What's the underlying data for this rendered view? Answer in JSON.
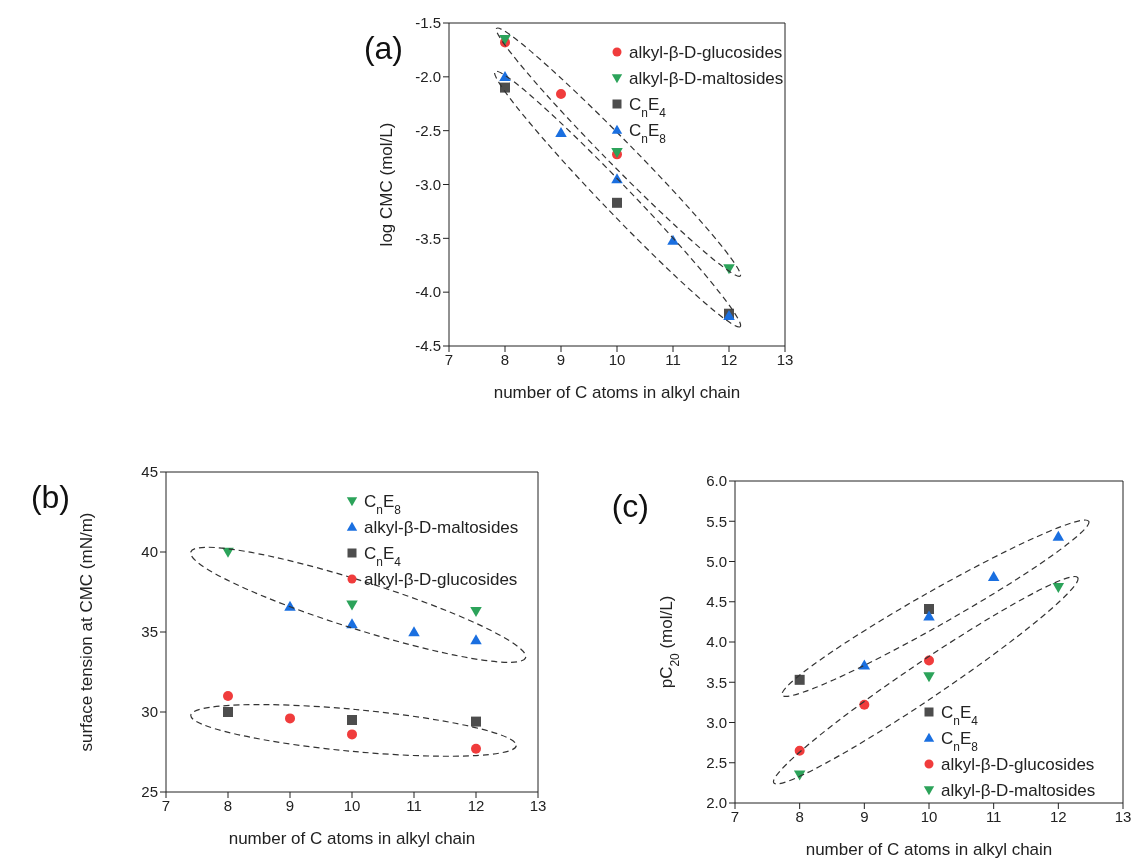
{
  "chart_data": [
    {
      "type": "scatter",
      "title": "(a)",
      "xlabel": "number of C atoms in alkyl chain",
      "ylabel": "log CMC (mol/L)",
      "xlim": [
        7,
        13
      ],
      "xticks": [
        7,
        8,
        9,
        10,
        11,
        12,
        13
      ],
      "ylim": [
        -4.5,
        -1.5
      ],
      "yticks": [
        {
          "value": -4.5,
          "label": "-4.5"
        },
        {
          "value": -4,
          "label": "-4.0"
        },
        {
          "value": -3.5,
          "label": "-3.5"
        },
        {
          "value": -3,
          "label": "-3.0"
        },
        {
          "value": -2.5,
          "label": "-2.5"
        },
        {
          "value": -2,
          "label": "-2.0"
        },
        {
          "value": -1.5,
          "label": "-1.5"
        }
      ],
      "grid": false,
      "legend": "top right",
      "series": [
        {
          "name": "alkyl-β-D-glucosides",
          "color": "#f03c3c",
          "marker": "circle",
          "x": [
            8,
            9,
            10
          ],
          "values": [
            -1.68,
            -2.16,
            -2.72
          ]
        },
        {
          "name": "alkyl-β-D-maltosides",
          "color": "#2ca35a",
          "marker": "triangle-down",
          "x": [
            8,
            10,
            12
          ],
          "values": [
            -1.65,
            -2.7,
            -3.78
          ]
        },
        {
          "name": "C$_{n}$E$_{4}$",
          "color": "#4d4d4d",
          "marker": "square",
          "x": [
            8,
            10,
            12
          ],
          "values": [
            -2.1,
            -3.17,
            -4.2
          ]
        },
        {
          "name": "C$_{n}$E$_{8}$",
          "color": "#1a6fe0",
          "marker": "triangle",
          "x": [
            8,
            9,
            10,
            11,
            12
          ],
          "values": [
            -2.0,
            -2.52,
            -2.95,
            -3.52,
            -4.22
          ]
        }
      ]
    },
    {
      "type": "scatter",
      "title": "(b)",
      "xlabel": "number of C atoms in alkyl chain",
      "ylabel": "surface tension at CMC (mN/m)",
      "xlim": [
        7,
        13
      ],
      "xticks": [
        7,
        8,
        9,
        10,
        11,
        12,
        13
      ],
      "ylim": [
        25,
        45
      ],
      "yticks": [
        25,
        30,
        35,
        40,
        45
      ],
      "grid": false,
      "legend": "top right",
      "series": [
        {
          "name": "C$_{n}$E$_{8}$",
          "color": "#2ca35a",
          "marker": "triangle-down",
          "x": [
            8,
            10,
            12
          ],
          "values": [
            40.0,
            36.7,
            36.3
          ]
        },
        {
          "name": "alkyl-β-D-maltosides",
          "color": "#1a6fe0",
          "marker": "triangle",
          "x": [
            9,
            10,
            11,
            12
          ],
          "values": [
            36.6,
            35.5,
            35.0,
            34.5
          ]
        },
        {
          "name": "C$_{n}$E$_{4}$",
          "color": "#4d4d4d",
          "marker": "square",
          "x": [
            8,
            10,
            12
          ],
          "values": [
            30.0,
            29.5,
            29.4
          ]
        },
        {
          "name": "alkyl-β-D-glucosides",
          "color": "#f03c3c",
          "marker": "circle",
          "x": [
            8,
            9,
            10,
            12
          ],
          "values": [
            31.0,
            29.6,
            28.6,
            27.7
          ]
        }
      ]
    },
    {
      "type": "scatter",
      "title": "(c)",
      "xlabel": "number of C atoms in alkyl chain",
      "ylabel": "pC$_{20}$ (mol/L)",
      "xlim": [
        7,
        13
      ],
      "xticks": [
        7,
        8,
        9,
        10,
        11,
        12,
        13
      ],
      "ylim": [
        2,
        6
      ],
      "yticks": [
        {
          "value": 2,
          "label": "2.0"
        },
        {
          "value": 2.5,
          "label": "2.5"
        },
        {
          "value": 3,
          "label": "3.0"
        },
        {
          "value": 3.5,
          "label": "3.5"
        },
        {
          "value": 4,
          "label": "4.0"
        },
        {
          "value": 4.5,
          "label": "4.5"
        },
        {
          "value": 5,
          "label": "5.0"
        },
        {
          "value": 5.5,
          "label": "5.5"
        },
        {
          "value": 6,
          "label": "6.0"
        }
      ],
      "grid": false,
      "legend": "bottom right",
      "series": [
        {
          "name": "C$_{n}$E$_{4}$",
          "color": "#4d4d4d",
          "marker": "square",
          "x": [
            8,
            10
          ],
          "values": [
            3.53,
            4.41
          ]
        },
        {
          "name": "C$_{n}$E$_{8}$",
          "color": "#1a6fe0",
          "marker": "triangle",
          "x": [
            9,
            10,
            11,
            12
          ],
          "values": [
            3.71,
            4.32,
            4.81,
            5.31
          ]
        },
        {
          "name": "alkyl-β-D-glucosides",
          "color": "#f03c3c",
          "marker": "circle",
          "x": [
            8,
            9,
            10
          ],
          "values": [
            2.65,
            3.22,
            3.77
          ]
        },
        {
          "name": "alkyl-β-D-maltosides",
          "color": "#2ca35a",
          "marker": "triangle-down",
          "x": [
            8,
            10,
            12
          ],
          "values": [
            2.35,
            3.57,
            4.68
          ]
        }
      ]
    }
  ]
}
